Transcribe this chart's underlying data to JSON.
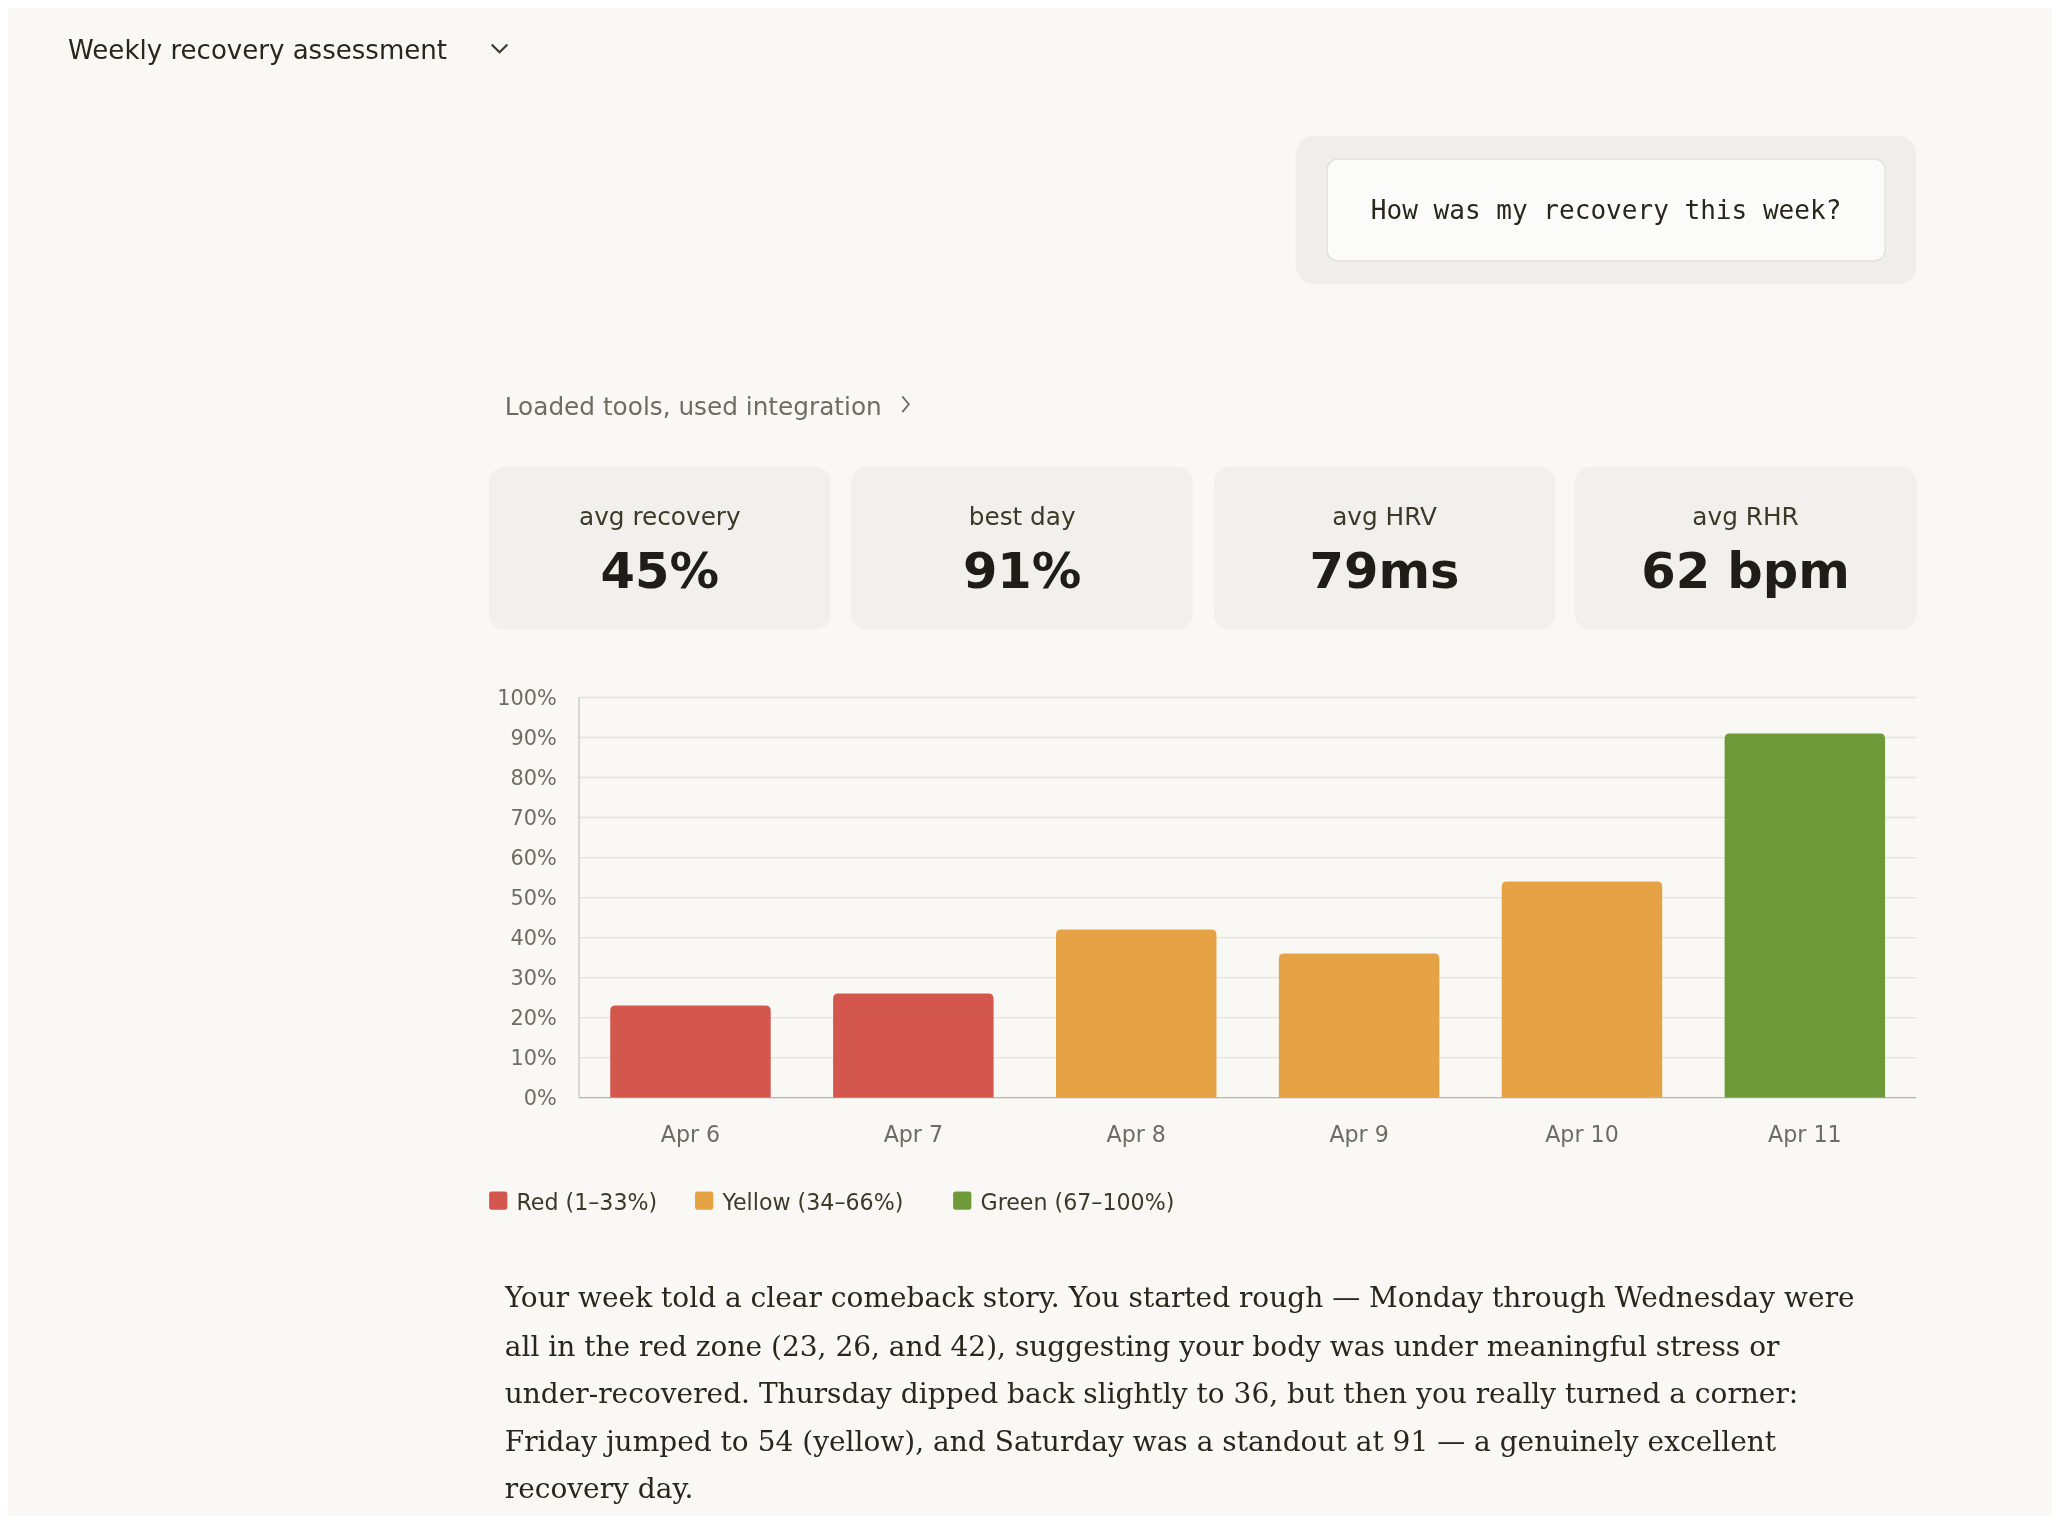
{
  "chart_data": {
    "type": "bar",
    "title": "Weekly recovery assessment",
    "categories": [
      "Apr 6",
      "Apr 7",
      "Apr 8",
      "Apr 9",
      "Apr 10",
      "Apr 11"
    ],
    "series": [
      {
        "name": "Red (1–33%)",
        "color": "#d4574e",
        "values": [
          23,
          26,
          null,
          null,
          null,
          null
        ]
      },
      {
        "name": "Yellow (34–66%)",
        "color": "#e5a345",
        "values": [
          null,
          null,
          42,
          36,
          54,
          null
        ]
      },
      {
        "name": "Green (67–100%)",
        "color": "#6e9a3a",
        "values": [
          null,
          null,
          null,
          null,
          null,
          91
        ]
      }
    ],
    "ylim": [
      0,
      100
    ],
    "yticks": [
      {
        "value": 0,
        "label": "0%"
      },
      {
        "value": 10,
        "label": "10%"
      },
      {
        "value": 20,
        "label": "20%"
      },
      {
        "value": 30,
        "label": "30%"
      },
      {
        "value": 40,
        "label": "40%"
      },
      {
        "value": 50,
        "label": "50%"
      },
      {
        "value": 60,
        "label": "60%"
      },
      {
        "value": 70,
        "label": "70%"
      },
      {
        "value": 80,
        "label": "80%"
      },
      {
        "value": 90,
        "label": "90%"
      },
      {
        "value": 100,
        "label": "100%"
      }
    ],
    "grid": "y",
    "legend": "bottom left",
    "annotations": [
      "How was my recovery this week?",
      "Loaded tools, used integration",
      "avg recovery",
      "45%",
      "best day",
      "91%",
      "avg HRV",
      "79ms",
      "avg RHR",
      "62 bpm",
      "Your week told a clear comeback story. You started rough — Monday through Wednesday were all in the red zone (23, 26, and 42), suggesting your body was under meaningful stress or under-recovered. Thursday dipped back slightly to 36, but then you really turned a corner: Friday jumped to 54 (yellow), and Saturday was a standout at 91 — a genuinely excellent recovery day."
    ]
  }
}
